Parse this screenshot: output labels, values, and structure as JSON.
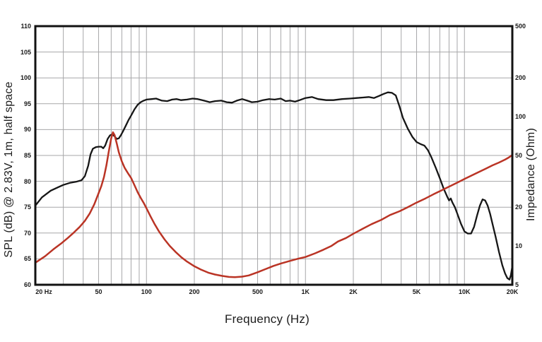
{
  "titles": {
    "left": "SPL (dB) @ 2.83V, 1m, half space",
    "right": "Impedance (Ohm)",
    "bottom": "Frequency (Hz)"
  },
  "colors": {
    "spl_curve": "#161616",
    "impedance_curve": "#ba3425",
    "grid": "#a7a7a9",
    "border": "#121212",
    "label_text": "#1a1a1a",
    "background": "#ffffff"
  },
  "chart_data": {
    "type": "line",
    "title": "",
    "x_axis": {
      "label": "Frequency (Hz)",
      "scale": "log",
      "min": 20,
      "max": 20000,
      "major_ticks": [
        {
          "value": 20,
          "label": "20 Hz"
        },
        {
          "value": 50,
          "label": "50"
        },
        {
          "value": 100,
          "label": "100"
        },
        {
          "value": 200,
          "label": "200"
        },
        {
          "value": 500,
          "label": "500"
        },
        {
          "value": 1000,
          "label": "1K"
        },
        {
          "value": 2000,
          "label": "2K"
        },
        {
          "value": 5000,
          "label": "5K"
        },
        {
          "value": 10000,
          "label": "10K"
        },
        {
          "value": 20000,
          "label": "20K"
        }
      ]
    },
    "y_left_axis": {
      "label": "SPL (dB) @ 2.83V, 1m, half space",
      "scale": "linear",
      "min": 60,
      "max": 110,
      "tick_step": 5,
      "ticks": [
        110,
        105,
        100,
        95,
        90,
        85,
        80,
        75,
        70,
        65,
        60
      ]
    },
    "y_right_axis": {
      "label": "Impedance (Ohm)",
      "scale": "log",
      "min": 5,
      "max": 500,
      "ticks": [
        500,
        200,
        100,
        50,
        20,
        10,
        5
      ]
    },
    "grid": true,
    "legend": "none",
    "series": [
      {
        "name": "SPL",
        "axis": "left",
        "unit": "dB",
        "color_key": "spl_curve",
        "points": [
          [
            20,
            75.3
          ],
          [
            22,
            76.9
          ],
          [
            25,
            78.2
          ],
          [
            28,
            78.9
          ],
          [
            30,
            79.3
          ],
          [
            33,
            79.7
          ],
          [
            36,
            79.9
          ],
          [
            39,
            80.2
          ],
          [
            41,
            81.0
          ],
          [
            43,
            83.0
          ],
          [
            44.5,
            85.2
          ],
          [
            46,
            86.3
          ],
          [
            48,
            86.6
          ],
          [
            50,
            86.7
          ],
          [
            52,
            86.7
          ],
          [
            53.5,
            86.4
          ],
          [
            55,
            86.9
          ],
          [
            57,
            88.2
          ],
          [
            59,
            88.9
          ],
          [
            61,
            89.1
          ],
          [
            63,
            88.7
          ],
          [
            65,
            88.2
          ],
          [
            67,
            88.3
          ],
          [
            69,
            88.9
          ],
          [
            71,
            89.6
          ],
          [
            74,
            90.7
          ],
          [
            77,
            91.8
          ],
          [
            80,
            92.7
          ],
          [
            84,
            93.9
          ],
          [
            88,
            94.8
          ],
          [
            92,
            95.3
          ],
          [
            96,
            95.6
          ],
          [
            100,
            95.8
          ],
          [
            108,
            95.9
          ],
          [
            115,
            96.0
          ],
          [
            125,
            95.6
          ],
          [
            135,
            95.5
          ],
          [
            145,
            95.8
          ],
          [
            155,
            95.9
          ],
          [
            165,
            95.7
          ],
          [
            180,
            95.8
          ],
          [
            195,
            96.0
          ],
          [
            210,
            95.9
          ],
          [
            230,
            95.6
          ],
          [
            250,
            95.3
          ],
          [
            270,
            95.5
          ],
          [
            295,
            95.6
          ],
          [
            320,
            95.3
          ],
          [
            345,
            95.2
          ],
          [
            370,
            95.6
          ],
          [
            400,
            95.9
          ],
          [
            430,
            95.6
          ],
          [
            460,
            95.3
          ],
          [
            500,
            95.4
          ],
          [
            540,
            95.7
          ],
          [
            590,
            95.9
          ],
          [
            640,
            95.8
          ],
          [
            700,
            96.0
          ],
          [
            750,
            95.5
          ],
          [
            800,
            95.6
          ],
          [
            860,
            95.4
          ],
          [
            920,
            95.7
          ],
          [
            1000,
            96.1
          ],
          [
            1100,
            96.3
          ],
          [
            1200,
            95.9
          ],
          [
            1350,
            95.7
          ],
          [
            1500,
            95.7
          ],
          [
            1700,
            95.9
          ],
          [
            1900,
            96.0
          ],
          [
            2100,
            96.1
          ],
          [
            2300,
            96.2
          ],
          [
            2500,
            96.3
          ],
          [
            2700,
            96.1
          ],
          [
            2900,
            96.5
          ],
          [
            3100,
            96.9
          ],
          [
            3300,
            97.2
          ],
          [
            3500,
            97.1
          ],
          [
            3700,
            96.6
          ],
          [
            3900,
            94.5
          ],
          [
            4100,
            92.3
          ],
          [
            4400,
            90.2
          ],
          [
            4700,
            88.6
          ],
          [
            5000,
            87.6
          ],
          [
            5300,
            87.2
          ],
          [
            5600,
            86.9
          ],
          [
            5900,
            86.0
          ],
          [
            6200,
            84.6
          ],
          [
            6600,
            82.6
          ],
          [
            7000,
            80.6
          ],
          [
            7400,
            78.6
          ],
          [
            7800,
            77.0
          ],
          [
            8000,
            76.3
          ],
          [
            8200,
            76.7
          ],
          [
            8400,
            75.9
          ],
          [
            8700,
            75.0
          ],
          [
            9000,
            73.8
          ],
          [
            9500,
            71.8
          ],
          [
            10000,
            70.3
          ],
          [
            10500,
            69.9
          ],
          [
            11000,
            69.9
          ],
          [
            11500,
            71.2
          ],
          [
            12000,
            73.4
          ],
          [
            12500,
            75.3
          ],
          [
            13000,
            76.5
          ],
          [
            13500,
            76.3
          ],
          [
            14000,
            75.3
          ],
          [
            14500,
            73.7
          ],
          [
            15000,
            71.8
          ],
          [
            15700,
            69.3
          ],
          [
            16500,
            66.3
          ],
          [
            17300,
            63.8
          ],
          [
            18000,
            62.2
          ],
          [
            18600,
            61.3
          ],
          [
            19200,
            61.0
          ],
          [
            19600,
            61.9
          ],
          [
            20000,
            63.6
          ]
        ]
      },
      {
        "name": "Impedance",
        "axis": "right",
        "unit": "Ohm",
        "color_key": "impedance_curve",
        "points": [
          [
            20,
            7.4
          ],
          [
            23,
            8.3
          ],
          [
            26,
            9.4
          ],
          [
            29,
            10.4
          ],
          [
            32,
            11.5
          ],
          [
            35,
            12.7
          ],
          [
            38,
            14.0
          ],
          [
            41,
            15.6
          ],
          [
            44,
            17.8
          ],
          [
            47,
            21.0
          ],
          [
            50,
            25.5
          ],
          [
            52,
            29.0
          ],
          [
            54,
            34.0
          ],
          [
            56,
            42.0
          ],
          [
            58,
            54.0
          ],
          [
            60,
            68.0
          ],
          [
            61.5,
            75.5
          ],
          [
            63,
            72.0
          ],
          [
            65,
            62.0
          ],
          [
            67,
            53.0
          ],
          [
            70,
            45.0
          ],
          [
            73,
            40.0
          ],
          [
            77,
            36.0
          ],
          [
            80,
            33.5
          ],
          [
            84,
            29.5
          ],
          [
            88,
            26.0
          ],
          [
            92,
            23.5
          ],
          [
            96,
            21.5
          ],
          [
            100,
            19.5
          ],
          [
            106,
            16.9
          ],
          [
            112,
            14.9
          ],
          [
            120,
            12.9
          ],
          [
            130,
            11.2
          ],
          [
            140,
            10.0
          ],
          [
            152,
            9.0
          ],
          [
            165,
            8.2
          ],
          [
            180,
            7.55
          ],
          [
            200,
            6.95
          ],
          [
            220,
            6.55
          ],
          [
            245,
            6.2
          ],
          [
            270,
            6.0
          ],
          [
            300,
            5.85
          ],
          [
            330,
            5.75
          ],
          [
            360,
            5.72
          ],
          [
            400,
            5.78
          ],
          [
            440,
            5.9
          ],
          [
            500,
            6.25
          ],
          [
            560,
            6.6
          ],
          [
            630,
            7.0
          ],
          [
            700,
            7.3
          ],
          [
            800,
            7.65
          ],
          [
            900,
            7.95
          ],
          [
            1000,
            8.2
          ],
          [
            1150,
            8.75
          ],
          [
            1300,
            9.35
          ],
          [
            1450,
            9.95
          ],
          [
            1600,
            10.8
          ],
          [
            1800,
            11.5
          ],
          [
            2000,
            12.4
          ],
          [
            2300,
            13.6
          ],
          [
            2600,
            14.7
          ],
          [
            3000,
            15.9
          ],
          [
            3400,
            17.3
          ],
          [
            3900,
            18.5
          ],
          [
            4400,
            19.9
          ],
          [
            5000,
            21.6
          ],
          [
            5700,
            23.3
          ],
          [
            6400,
            25.1
          ],
          [
            7200,
            26.9
          ],
          [
            8000,
            28.7
          ],
          [
            9000,
            30.8
          ],
          [
            10000,
            32.9
          ],
          [
            11000,
            34.8
          ],
          [
            12000,
            36.7
          ],
          [
            13500,
            39.3
          ],
          [
            15000,
            41.9
          ],
          [
            16500,
            44.1
          ],
          [
            18000,
            46.4
          ],
          [
            19000,
            48.2
          ],
          [
            20000,
            50.5
          ]
        ]
      }
    ]
  }
}
